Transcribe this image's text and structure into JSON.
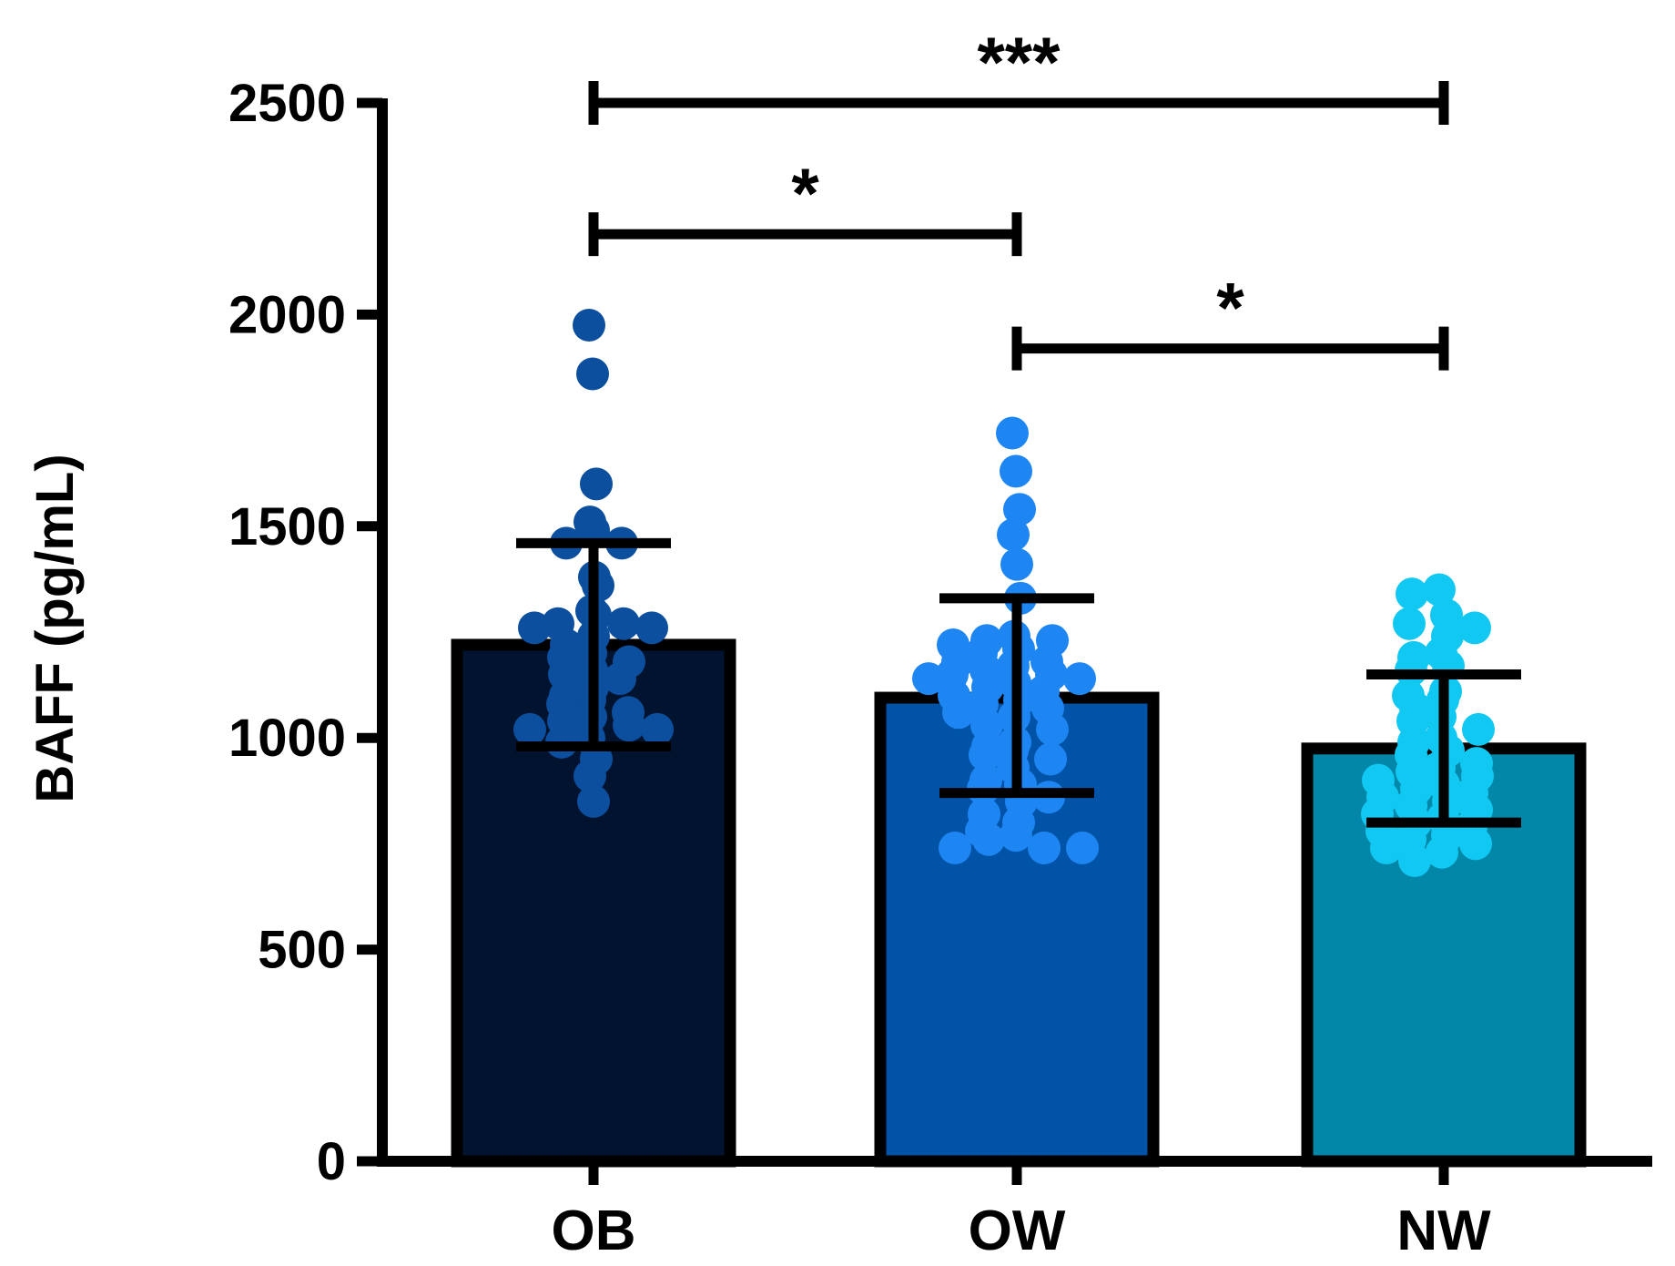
{
  "chart_data": {
    "type": "bar",
    "title": "",
    "xlabel": "",
    "ylabel": "BAFF (pg/mL)",
    "ylim": [
      0,
      2500
    ],
    "yticks": [
      0,
      500,
      1000,
      1500,
      2000,
      2500
    ],
    "categories": [
      "OB",
      "OW",
      "NW"
    ],
    "values": [
      1220,
      1095,
      975
    ],
    "error_bars": [
      {
        "low": 980,
        "high": 1460
      },
      {
        "low": 870,
        "high": 1330
      },
      {
        "low": 800,
        "high": 1150
      }
    ],
    "bar_colors": [
      "#01132e",
      "#0153a8",
      "#0287a8"
    ],
    "point_colors": [
      "#0b4f9e",
      "#1e86f2",
      "#11c8f2"
    ],
    "grid": false,
    "legend": "none",
    "points": [
      [
        1975,
        1860,
        1600,
        1510,
        1490,
        1460,
        1460,
        1380,
        1360,
        1300,
        1290,
        1270,
        1270,
        1260,
        1260,
        1240,
        1220,
        1200,
        1190,
        1180,
        1160,
        1150,
        1140,
        1120,
        1100,
        1090,
        1080,
        1060,
        1050,
        1040,
        1030,
        1020,
        1020,
        1000,
        990,
        950,
        910,
        850
      ],
      [
        1720,
        1630,
        1540,
        1480,
        1410,
        1330,
        1240,
        1230,
        1230,
        1220,
        1210,
        1200,
        1180,
        1180,
        1170,
        1160,
        1150,
        1150,
        1140,
        1140,
        1130,
        1120,
        1110,
        1100,
        1090,
        1080,
        1070,
        1060,
        1050,
        1030,
        1020,
        990,
        980,
        970,
        960,
        950,
        930,
        900,
        890,
        880,
        860,
        850,
        820,
        800,
        780,
        770,
        760,
        740,
        740,
        740
      ],
      [
        1350,
        1340,
        1290,
        1270,
        1260,
        1240,
        1200,
        1190,
        1170,
        1160,
        1110,
        1100,
        1090,
        1070,
        1050,
        1040,
        1020,
        1000,
        990,
        970,
        960,
        940,
        930,
        920,
        910,
        900,
        890,
        880,
        870,
        860,
        850,
        840,
        830,
        820,
        810,
        800,
        790,
        780,
        770,
        760,
        750,
        740,
        730,
        710
      ]
    ],
    "annotations": [
      {
        "from": "OB",
        "to": "NW",
        "label": "***",
        "y": 2500
      },
      {
        "from": "OB",
        "to": "OW",
        "label": "*",
        "y": 2190
      },
      {
        "from": "OW",
        "to": "NW",
        "label": "*",
        "y": 1920
      }
    ]
  }
}
